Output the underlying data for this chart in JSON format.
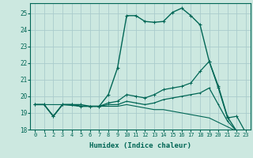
{
  "xlabel": "Humidex (Indice chaleur)",
  "bg_color": "#cce8e0",
  "grid_color": "#aacccc",
  "line_color": "#006655",
  "xlim": [
    -0.5,
    23.5
  ],
  "ylim": [
    18.0,
    25.6
  ],
  "yticks": [
    18,
    19,
    20,
    21,
    22,
    23,
    24,
    25
  ],
  "xticks": [
    0,
    1,
    2,
    3,
    4,
    5,
    6,
    7,
    8,
    9,
    10,
    11,
    12,
    13,
    14,
    15,
    16,
    17,
    18,
    19,
    20,
    21,
    22,
    23
  ],
  "line1_x": [
    0,
    1,
    2,
    3,
    4,
    5,
    6,
    7,
    8,
    9,
    10,
    11,
    12,
    13,
    14,
    15,
    16,
    17,
    18,
    19,
    20,
    21,
    22,
    23
  ],
  "line1_y": [
    19.5,
    19.5,
    18.8,
    19.5,
    19.5,
    19.5,
    19.4,
    19.4,
    20.1,
    21.7,
    24.85,
    24.85,
    24.5,
    24.45,
    24.5,
    25.05,
    25.3,
    24.85,
    24.3,
    22.1,
    20.6,
    18.75,
    17.9,
    17.75
  ],
  "line2_x": [
    0,
    1,
    2,
    3,
    4,
    5,
    6,
    7,
    8,
    9,
    10,
    11,
    12,
    13,
    14,
    15,
    16,
    17,
    18,
    19,
    20,
    21,
    22,
    23
  ],
  "line2_y": [
    19.5,
    19.5,
    18.8,
    19.5,
    19.5,
    19.4,
    19.4,
    19.4,
    19.6,
    19.7,
    20.1,
    20.0,
    19.9,
    20.1,
    20.4,
    20.5,
    20.6,
    20.8,
    21.5,
    22.1,
    20.5,
    18.7,
    18.8,
    17.8
  ],
  "line3_x": [
    0,
    1,
    2,
    3,
    4,
    5,
    6,
    7,
    8,
    9,
    10,
    11,
    12,
    13,
    14,
    15,
    16,
    17,
    18,
    19,
    20,
    21,
    22,
    23
  ],
  "line3_y": [
    19.5,
    19.5,
    18.8,
    19.5,
    19.5,
    19.4,
    19.4,
    19.4,
    19.5,
    19.5,
    19.7,
    19.6,
    19.5,
    19.6,
    19.8,
    19.9,
    20.0,
    20.1,
    20.2,
    20.5,
    19.5,
    18.5,
    17.9,
    17.75
  ],
  "line4_x": [
    0,
    3,
    5,
    6,
    7,
    8,
    9,
    10,
    11,
    12,
    13,
    14,
    15,
    16,
    17,
    18,
    19,
    22,
    23
  ],
  "line4_y": [
    19.5,
    19.5,
    19.4,
    19.4,
    19.4,
    19.4,
    19.4,
    19.5,
    19.4,
    19.3,
    19.2,
    19.2,
    19.1,
    19.0,
    18.9,
    18.8,
    18.7,
    17.9,
    17.75
  ]
}
